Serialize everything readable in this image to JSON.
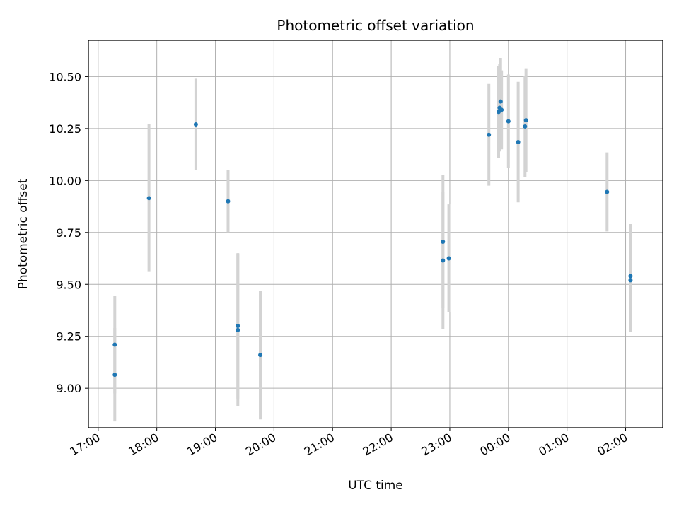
{
  "chart_data": {
    "type": "scatter",
    "title": "Photometric offset variation",
    "xlabel": "UTC time",
    "ylabel": "Photometric offset",
    "x_axis": "time",
    "x_range": [
      "16:50",
      "26:38"
    ],
    "ylim": [
      8.81,
      10.675
    ],
    "x_ticks": [
      "17:00",
      "18:00",
      "19:00",
      "20:00",
      "21:00",
      "22:00",
      "23:00",
      "00:00",
      "01:00",
      "02:00"
    ],
    "x_tick_values": [
      "17:00",
      "18:00",
      "19:00",
      "20:00",
      "21:00",
      "22:00",
      "23:00",
      "24:00",
      "25:00",
      "26:00"
    ],
    "y_ticks": [
      "9.00",
      "9.25",
      "9.50",
      "9.75",
      "10.00",
      "10.25",
      "10.50"
    ],
    "y_tick_values": [
      9.0,
      9.25,
      9.5,
      9.75,
      10.0,
      10.25,
      10.5
    ],
    "grid": true,
    "legend": "none",
    "point_color": "#1f77b4",
    "errorbar_color": "#d3d3d3",
    "points": [
      {
        "x": "17:17",
        "y": 9.21,
        "yerr": 0.235
      },
      {
        "x": "17:17",
        "y": 9.065,
        "yerr": 0.225
      },
      {
        "x": "17:52",
        "y": 9.915,
        "yerr": 0.355
      },
      {
        "x": "18:40",
        "y": 10.27,
        "yerr": 0.22
      },
      {
        "x": "19:13",
        "y": 9.9,
        "yerr": 0.15
      },
      {
        "x": "19:23",
        "y": 9.3,
        "yerr": 0.35
      },
      {
        "x": "19:23",
        "y": 9.28,
        "yerr": 0.365
      },
      {
        "x": "19:46",
        "y": 9.16,
        "yerr": 0.31
      },
      {
        "x": "22:53",
        "y": 9.705,
        "yerr": 0.32
      },
      {
        "x": "22:53",
        "y": 9.615,
        "yerr": 0.33
      },
      {
        "x": "22:59",
        "y": 9.625,
        "yerr": 0.26
      },
      {
        "x": "23:40",
        "y": 10.22,
        "yerr": 0.245
      },
      {
        "x": "23:50",
        "y": 10.33,
        "yerr": 0.22
      },
      {
        "x": "23:51",
        "y": 10.35,
        "yerr": 0.21
      },
      {
        "x": "23:52",
        "y": 10.38,
        "yerr": 0.21
      },
      {
        "x": "23:53",
        "y": 10.34,
        "yerr": 0.19
      },
      {
        "x": "24:00",
        "y": 10.285,
        "yerr": 0.225
      },
      {
        "x": "24:10",
        "y": 10.185,
        "yerr": 0.29
      },
      {
        "x": "24:17",
        "y": 10.26,
        "yerr": 0.245
      },
      {
        "x": "24:18",
        "y": 10.29,
        "yerr": 0.25
      },
      {
        "x": "25:41",
        "y": 9.945,
        "yerr": 0.19
      },
      {
        "x": "26:05",
        "y": 9.54,
        "yerr": 0.25
      },
      {
        "x": "26:05",
        "y": 9.52,
        "yerr": 0.25
      }
    ]
  }
}
